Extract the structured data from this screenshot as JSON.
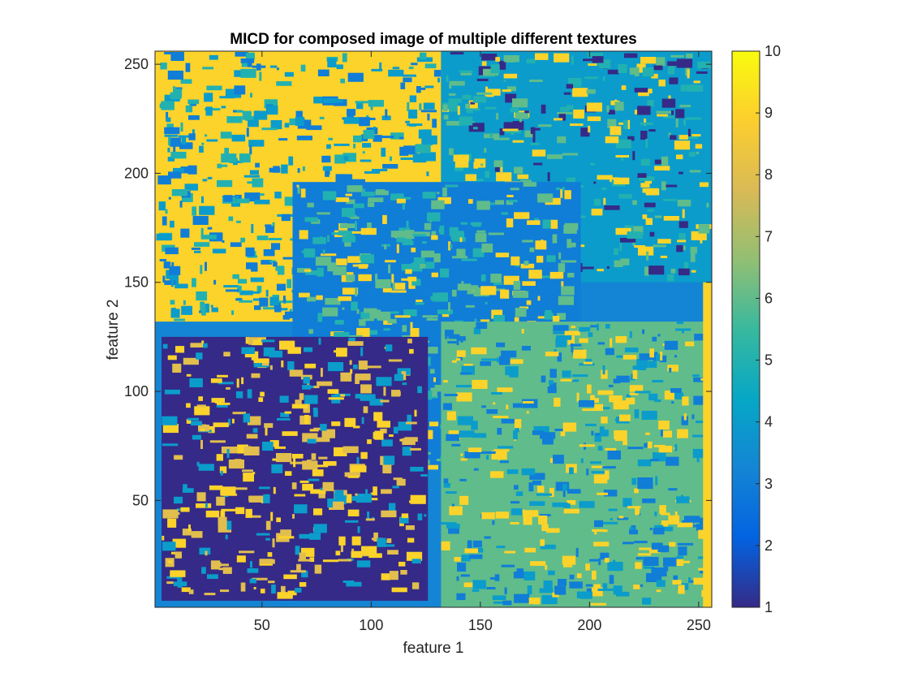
{
  "chart_data": {
    "type": "heatmap",
    "title": "MICD for composed image of multiple different textures",
    "xlabel": "feature 1",
    "ylabel": "feature 2",
    "xlim": [
      1,
      256
    ],
    "ylim": [
      1,
      256
    ],
    "xticks": [
      50,
      100,
      150,
      200,
      250
    ],
    "yticks": [
      50,
      100,
      150,
      200,
      250
    ],
    "colormap": "parula",
    "colorbar": {
      "range": [
        1,
        10
      ],
      "ticks": [
        1,
        2,
        3,
        4,
        5,
        6,
        7,
        8,
        9,
        10
      ],
      "stops": [
        "#352a87",
        "#0363e1",
        "#1485d4",
        "#06a7c6",
        "#38b99e",
        "#92bf73",
        "#d9ba56",
        "#fcce2e",
        "#f9fb0e"
      ]
    },
    "regions": [
      {
        "label": "top-left",
        "x": [
          1,
          132
        ],
        "y": [
          132,
          256
        ],
        "dominant_class": 9,
        "secondary_classes": [
          4,
          5,
          3
        ]
      },
      {
        "label": "top-right",
        "x": [
          132,
          256
        ],
        "y": [
          150,
          256
        ],
        "dominant_class": 4,
        "secondary_classes": [
          5,
          6,
          9,
          1
        ]
      },
      {
        "label": "center",
        "x": [
          64,
          196
        ],
        "y": [
          64,
          196
        ],
        "dominant_class": 3,
        "secondary_classes": [
          6,
          9,
          5
        ]
      },
      {
        "label": "bottom-left",
        "x": [
          4,
          126
        ],
        "y": [
          4,
          125
        ],
        "dominant_class": 1,
        "secondary_classes": [
          8,
          9,
          4
        ]
      },
      {
        "label": "bottom-right",
        "x": [
          132,
          256
        ],
        "y": [
          1,
          132
        ],
        "dominant_class": 6,
        "secondary_classes": [
          4,
          9,
          3
        ]
      },
      {
        "label": "right-edge",
        "x": [
          252,
          256
        ],
        "y": [
          1,
          150
        ],
        "dominant_class": 9,
        "secondary_classes": []
      }
    ]
  }
}
